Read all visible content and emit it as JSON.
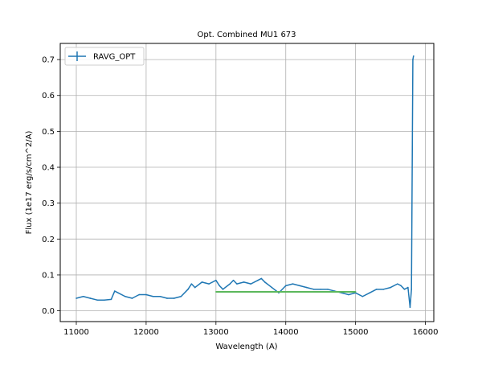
{
  "chart_data": {
    "type": "line",
    "title": "Opt. Combined MU1 673",
    "xlabel": "Wavelength (A)",
    "ylabel": "Flux (1e17 erg/s/cm^2/A)",
    "xlim": [
      10770,
      16120
    ],
    "ylim": [
      -0.03,
      0.745
    ],
    "xticks": [
      11000,
      12000,
      13000,
      14000,
      15000,
      16000
    ],
    "xtick_labels": [
      "11000",
      "12000",
      "13000",
      "14000",
      "15000",
      "16000"
    ],
    "yticks": [
      0.0,
      0.1,
      0.2,
      0.3,
      0.4,
      0.5,
      0.6,
      0.7
    ],
    "ytick_labels": [
      "0.0",
      "0.1",
      "0.2",
      "0.3",
      "0.4",
      "0.5",
      "0.6",
      "0.7"
    ],
    "grid": true,
    "legend": {
      "position": "top-left",
      "entries": [
        "RAVG_OPT"
      ]
    },
    "series": [
      {
        "name": "RAVG_OPT",
        "color": "#1f77b4",
        "errorbars": true,
        "x": [
          11000,
          11100,
          11200,
          11300,
          11400,
          11500,
          11550,
          11600,
          11700,
          11800,
          11900,
          12000,
          12100,
          12200,
          12300,
          12400,
          12500,
          12600,
          12650,
          12700,
          12800,
          12900,
          13000,
          13050,
          13100,
          13200,
          13250,
          13300,
          13400,
          13500,
          13600,
          13650,
          13700,
          13800,
          13900,
          14000,
          14100,
          14200,
          14300,
          14400,
          14500,
          14600,
          14700,
          14800,
          14900,
          15000,
          15100,
          15200,
          15300,
          15400,
          15500,
          15600,
          15650,
          15700,
          15750,
          15780,
          15800,
          15820,
          15830
        ],
        "y": [
          0.035,
          0.04,
          0.035,
          0.03,
          0.03,
          0.032,
          0.055,
          0.05,
          0.04,
          0.035,
          0.045,
          0.045,
          0.04,
          0.04,
          0.035,
          0.035,
          0.04,
          0.06,
          0.075,
          0.065,
          0.08,
          0.075,
          0.085,
          0.07,
          0.06,
          0.075,
          0.085,
          0.075,
          0.08,
          0.075,
          0.085,
          0.09,
          0.08,
          0.065,
          0.05,
          0.07,
          0.075,
          0.07,
          0.065,
          0.06,
          0.06,
          0.06,
          0.055,
          0.05,
          0.045,
          0.05,
          0.04,
          0.05,
          0.06,
          0.06,
          0.065,
          0.075,
          0.07,
          0.06,
          0.065,
          0.01,
          0.06,
          0.7,
          0.71
        ]
      },
      {
        "name": "",
        "color": "#5cb85c",
        "x": [
          13000,
          15000
        ],
        "y": [
          0.053,
          0.053
        ]
      }
    ]
  }
}
